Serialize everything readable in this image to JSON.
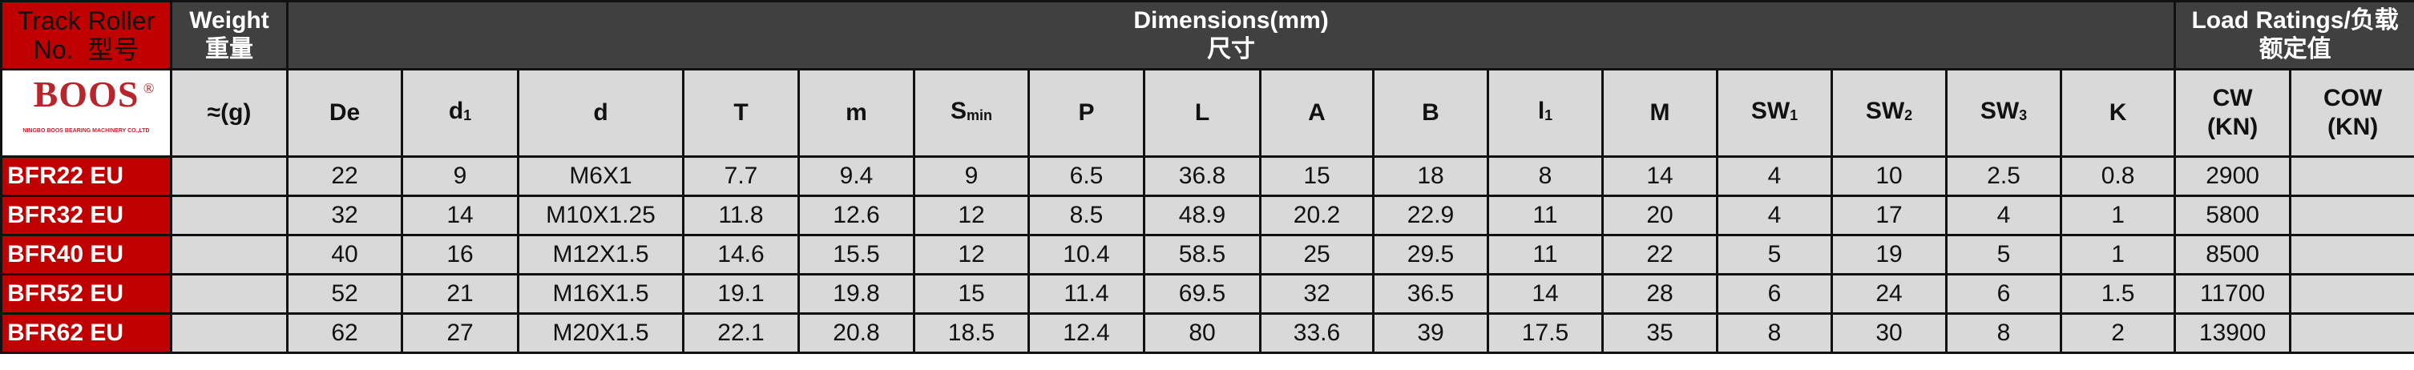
{
  "header": {
    "model_label": "Track Roller",
    "model_label2": "No.  型号",
    "weight_label": "Weight",
    "weight_label_cn": "重量",
    "dimensions_label": "Dimensions(mm)",
    "dimensions_label_cn": "尺寸",
    "load_label": "Load Ratings/负载",
    "load_label_cn": "额定值"
  },
  "logo": {
    "brand": "BOOS",
    "registered": "®",
    "company": "NINGBO BOOS BEARING MACHINERY CO.,LTD"
  },
  "columns": {
    "weight": "≈(g)",
    "dims": [
      {
        "main": "De",
        "sub": ""
      },
      {
        "main": "d",
        "sub": "1"
      },
      {
        "main": "d",
        "sub": ""
      },
      {
        "main": "T",
        "sub": ""
      },
      {
        "main": "m",
        "sub": ""
      },
      {
        "main": "S",
        "sub": "min"
      },
      {
        "main": "P",
        "sub": ""
      },
      {
        "main": "L",
        "sub": ""
      },
      {
        "main": "A",
        "sub": ""
      },
      {
        "main": "B",
        "sub": ""
      },
      {
        "main": "l",
        "sub": "1"
      },
      {
        "main": "M",
        "sub": ""
      },
      {
        "main": "SW",
        "sub": "1"
      },
      {
        "main": "SW",
        "sub": "2"
      },
      {
        "main": "SW",
        "sub": "3"
      },
      {
        "main": "K",
        "sub": ""
      }
    ],
    "cw": "CW",
    "cw_unit": "(KN)",
    "cow": "COW",
    "cow_unit": "(KN)"
  },
  "rows": [
    {
      "model": "BFR22 EU",
      "weight": "",
      "values": [
        "22",
        "9",
        "M6X1",
        "7.7",
        "9.4",
        "9",
        "6.5",
        "36.8",
        "15",
        "18",
        "8",
        "14",
        "4",
        "10",
        "2.5",
        "0.8"
      ],
      "cw": "2900",
      "cow": ""
    },
    {
      "model": "BFR32 EU",
      "weight": "",
      "values": [
        "32",
        "14",
        "M10X1.25",
        "11.8",
        "12.6",
        "12",
        "8.5",
        "48.9",
        "20.2",
        "22.9",
        "11",
        "20",
        "4",
        "17",
        "4",
        "1"
      ],
      "cw": "5800",
      "cow": ""
    },
    {
      "model": "BFR40 EU",
      "weight": "",
      "values": [
        "40",
        "16",
        "M12X1.5",
        "14.6",
        "15.5",
        "12",
        "10.4",
        "58.5",
        "25",
        "29.5",
        "11",
        "22",
        "5",
        "19",
        "5",
        "1"
      ],
      "cw": "8500",
      "cow": ""
    },
    {
      "model": "BFR52 EU",
      "weight": "",
      "values": [
        "52",
        "21",
        "M16X1.5",
        "19.1",
        "19.8",
        "15",
        "11.4",
        "69.5",
        "32",
        "36.5",
        "14",
        "28",
        "6",
        "24",
        "6",
        "1.5"
      ],
      "cw": "11700",
      "cow": ""
    },
    {
      "model": "BFR62 EU",
      "weight": "",
      "values": [
        "62",
        "27",
        "M20X1.5",
        "22.1",
        "20.8",
        "18.5",
        "12.4",
        "80",
        "33.6",
        "39",
        "17.5",
        "35",
        "8",
        "30",
        "8",
        "2"
      ],
      "cw": "13900",
      "cow": ""
    }
  ]
}
